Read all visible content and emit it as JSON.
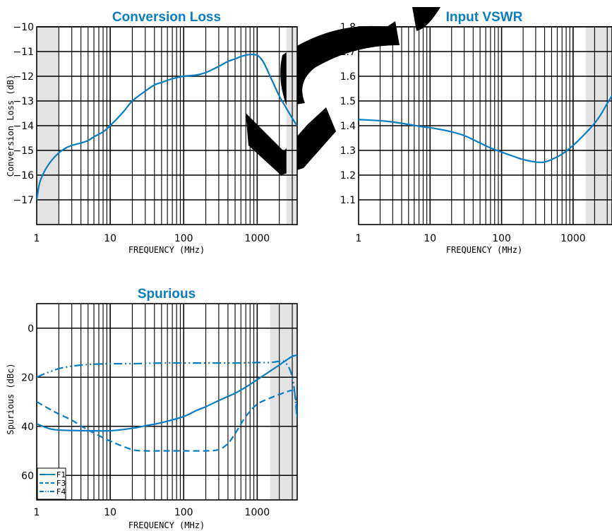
{
  "colors": {
    "series": "#0a7dc1",
    "band": "#e3e3e3",
    "grid": "#000000",
    "watermark": "#000000"
  },
  "chart_data": [
    {
      "type": "line",
      "title": "Conversion Loss",
      "xlabel": "FREQUENCY (MHz)",
      "ylabel": "Conversion Loss (dB)",
      "xscale": "log",
      "xlim": [
        1,
        3500
      ],
      "ylim": [
        -18,
        -10
      ],
      "xticks": [
        1,
        10,
        100,
        1000
      ],
      "xtick_labels": [
        "1",
        "10",
        "100",
        "1000"
      ],
      "yticks": [
        -10,
        -11,
        -12,
        -13,
        -14,
        -15,
        -16,
        -17
      ],
      "ytick_labels": [
        "−10",
        "−11",
        "−12",
        "−13",
        "−14",
        "−15",
        "−16",
        "−17"
      ],
      "grid": true,
      "shaded_x_ranges": [
        [
          1,
          2
        ],
        [
          2500,
          3500
        ]
      ],
      "series": [
        {
          "style": "solid",
          "x": [
            1,
            1.1,
            1.3,
            1.6,
            2,
            2.5,
            3,
            4,
            5,
            6,
            8,
            10,
            15,
            20,
            30,
            40,
            50,
            70,
            100,
            150,
            200,
            300,
            400,
            500,
            600,
            700,
            800,
            1000,
            1200,
            1500,
            2000,
            2500,
            3000,
            3500
          ],
          "y": [
            -17.0,
            -16.3,
            -15.8,
            -15.4,
            -15.1,
            -14.9,
            -14.8,
            -14.7,
            -14.6,
            -14.45,
            -14.25,
            -14.0,
            -13.45,
            -13.0,
            -12.6,
            -12.35,
            -12.25,
            -12.1,
            -12.0,
            -11.95,
            -11.85,
            -11.6,
            -11.4,
            -11.3,
            -11.2,
            -11.15,
            -11.12,
            -11.15,
            -11.4,
            -12.0,
            -12.8,
            -13.3,
            -13.7,
            -14.0
          ]
        }
      ]
    },
    {
      "type": "line",
      "title": "Input VSWR",
      "xlabel": "FREQUENCY (MHz)",
      "ylabel": "VSWR",
      "xscale": "log",
      "xlim": [
        1,
        3500
      ],
      "ylim": [
        1.0,
        1.8
      ],
      "xticks": [
        1,
        10,
        100,
        1000
      ],
      "xtick_labels": [
        "1",
        "10",
        "100",
        "1000"
      ],
      "yticks": [
        1.8,
        1.7,
        1.6,
        1.5,
        1.4,
        1.3,
        1.2,
        1.1
      ],
      "ytick_labels": [
        "1.8",
        "1.7",
        "1.6",
        "1.5",
        "1.4",
        "1.3",
        "1.2",
        "1.1"
      ],
      "grid": true,
      "shaded_x_ranges": [
        [
          1500,
          3500
        ]
      ],
      "series": [
        {
          "style": "solid",
          "x": [
            1,
            2,
            3,
            5,
            8,
            10,
            15,
            20,
            30,
            50,
            70,
            100,
            150,
            200,
            300,
            350,
            400,
            500,
            700,
            1000,
            1500,
            2000,
            2500,
            3000,
            3500
          ],
          "y": [
            1.425,
            1.42,
            1.415,
            1.405,
            1.395,
            1.392,
            1.383,
            1.375,
            1.36,
            1.33,
            1.31,
            1.293,
            1.275,
            1.263,
            1.253,
            1.252,
            1.253,
            1.263,
            1.285,
            1.32,
            1.37,
            1.41,
            1.45,
            1.49,
            1.52
          ]
        }
      ]
    },
    {
      "type": "line",
      "title": "Spurious",
      "xlabel": "FREQUENCY (MHz)",
      "ylabel": "Spurious (dBc)",
      "xscale": "log",
      "xlim": [
        1,
        3500
      ],
      "ylim": [
        70,
        -10
      ],
      "xticks": [
        1,
        10,
        100,
        1000
      ],
      "xtick_labels": [
        "1",
        "10",
        "100",
        "1000"
      ],
      "yticks": [
        0,
        20,
        40,
        60
      ],
      "ytick_labels": [
        "0",
        "20",
        "40",
        "60"
      ],
      "grid": true,
      "legend_position": "bottom-left",
      "shaded_x_ranges": [
        [
          1500,
          3500
        ]
      ],
      "series": [
        {
          "name": "F1",
          "style": "solid",
          "x": [
            1,
            1.5,
            2,
            3,
            5,
            10,
            20,
            30,
            50,
            100,
            150,
            200,
            300,
            500,
            700,
            1000,
            1500,
            2000,
            2500,
            3000,
            3500
          ],
          "y": [
            39,
            41,
            41.5,
            41.7,
            41.8,
            41.8,
            40.8,
            39.8,
            38.5,
            36,
            33.5,
            32,
            29.5,
            26.5,
            24,
            21,
            17.5,
            15,
            13,
            11.5,
            11
          ]
        },
        {
          "name": "F3",
          "style": "dashed",
          "x": [
            1,
            1.5,
            2,
            3,
            5,
            10,
            20,
            30,
            50,
            100,
            200,
            300,
            400,
            500,
            700,
            1000,
            1500,
            2000,
            2500,
            3000,
            3300,
            3500
          ],
          "y": [
            30,
            33,
            35,
            37.5,
            41.5,
            46,
            49.5,
            50,
            50,
            50,
            50,
            49.5,
            47,
            43,
            36,
            31,
            28.5,
            27,
            26,
            25.5,
            28,
            36
          ]
        },
        {
          "name": "F4",
          "style": "dashdotdot",
          "x": [
            1,
            1.3,
            1.6,
            2,
            3,
            5,
            10,
            20,
            50,
            100,
            200,
            500,
            1000,
            1500,
            2000,
            2300,
            2700,
            3000,
            3200,
            3400,
            3500
          ],
          "y": [
            20,
            18.5,
            17.5,
            16.5,
            15.5,
            14.8,
            14.5,
            14.5,
            14.2,
            14.2,
            14.2,
            14.2,
            14,
            14,
            13.5,
            13.5,
            16,
            20,
            25,
            33,
            38
          ]
        }
      ]
    }
  ]
}
